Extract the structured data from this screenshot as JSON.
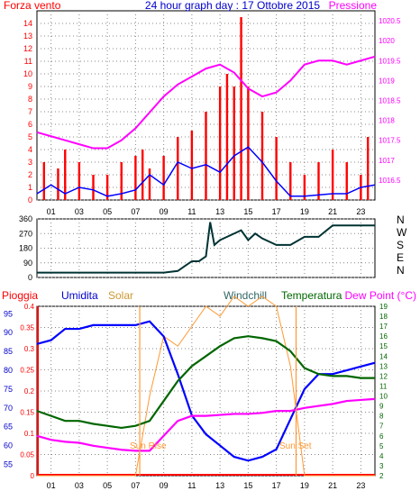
{
  "header": {
    "left_label": "Forza vento",
    "title": "24 hour graph day : 17 Ottobre 2015",
    "right_label": "Pressione"
  },
  "bottom_labels": {
    "pioggia": "Pioggia",
    "umidita": "Umidita",
    "solar": "Solar",
    "windchill": "Windchill",
    "temperatura": "Temperatura",
    "dewpoint": "Dew Point (°C)"
  },
  "annotations": {
    "sunrise": "Sun Rise",
    "sunset": "Sun Set"
  },
  "x_ticks": [
    "01",
    "03",
    "05",
    "07",
    "09",
    "11",
    "13",
    "15",
    "17",
    "19",
    "21",
    "23"
  ],
  "colors": {
    "wind": "#ff0000",
    "gust": "#0000ff",
    "pressure": "#ff00ff",
    "direction": "#003333",
    "rain": "#ff0000",
    "humidity": "#0000ff",
    "solar": "#ff9933",
    "temperature": "#006600",
    "dewpoint": "#ff00ff",
    "grid": "#888888"
  },
  "chart_data": [
    {
      "type": "bar",
      "name": "wind",
      "y_left_range": [
        0,
        15
      ],
      "y_left_ticks": [
        "0",
        "1",
        "2",
        "3",
        "4",
        "5",
        "6",
        "7",
        "8",
        "9",
        "10",
        "11",
        "12",
        "13",
        "14"
      ],
      "y_right_range": [
        1016,
        1020.75
      ],
      "y_right_ticks": [
        "1016.5",
        "1017",
        "1017.5",
        "1018",
        "1018.5",
        "1019",
        "1019.5",
        "1020",
        "1020.5"
      ],
      "x_range": [
        0,
        24
      ],
      "wind_hours": [
        0.5,
        1.5,
        2,
        3,
        4,
        5,
        6,
        7,
        7.5,
        8,
        9,
        10,
        11,
        12,
        13,
        13.5,
        14,
        14.5,
        15,
        16,
        17,
        18,
        19,
        20,
        21,
        22,
        23,
        23.5
      ],
      "wind_values": [
        3,
        2.5,
        4,
        3,
        2,
        2,
        3,
        3.5,
        4,
        2.5,
        3.5,
        5,
        5.5,
        7,
        9,
        10,
        9,
        14.5,
        9,
        7,
        5,
        3,
        2,
        3,
        4,
        3,
        2,
        5
      ],
      "pressure_hours": [
        0,
        1,
        2,
        3,
        4,
        5,
        6,
        7,
        8,
        9,
        10,
        11,
        12,
        13,
        14,
        15,
        16,
        17,
        18,
        19,
        20,
        21,
        22,
        23,
        24
      ],
      "pressure_values": [
        1017.7,
        1017.6,
        1017.5,
        1017.4,
        1017.3,
        1017.3,
        1017.5,
        1017.8,
        1018.2,
        1018.6,
        1018.9,
        1019.1,
        1019.3,
        1019.4,
        1019.2,
        1018.8,
        1018.6,
        1018.7,
        1019.0,
        1019.4,
        1019.5,
        1019.5,
        1019.4,
        1019.5,
        1019.6
      ],
      "gust_hours": [
        0,
        1,
        2,
        3,
        4,
        5,
        6,
        7,
        8,
        9,
        10,
        11,
        12,
        13,
        14,
        15,
        16,
        17,
        18,
        19,
        20,
        21,
        22,
        23,
        24
      ],
      "gust_values": [
        0.5,
        1.2,
        0.5,
        1.0,
        0.8,
        0.3,
        0.5,
        0.8,
        2.0,
        1.2,
        3.0,
        2.5,
        2.8,
        2.2,
        3.5,
        4.2,
        3.0,
        1.5,
        0.3,
        0.3,
        0.4,
        0.5,
        0.5,
        1.0,
        1.2
      ]
    },
    {
      "type": "line",
      "name": "wind direction",
      "y_range": [
        0,
        360
      ],
      "y_ticks": [
        "0",
        "90",
        "180",
        "270",
        "360"
      ],
      "y_letters": [
        "N",
        "W",
        "S",
        "E",
        "N"
      ],
      "x_range": [
        0,
        24
      ],
      "x": [
        0,
        1,
        2,
        3,
        4,
        5,
        6,
        7,
        8,
        9,
        10,
        10.5,
        11,
        11.5,
        12,
        12.3,
        12.6,
        13,
        13.5,
        14,
        14.5,
        15,
        15.5,
        16,
        17,
        18,
        19,
        20,
        21,
        22,
        23,
        24
      ],
      "y": [
        30,
        30,
        30,
        30,
        30,
        30,
        30,
        30,
        30,
        30,
        40,
        70,
        100,
        100,
        130,
        340,
        200,
        230,
        250,
        270,
        290,
        230,
        270,
        240,
        200,
        200,
        250,
        250,
        320,
        320,
        320,
        320
      ]
    },
    {
      "type": "line",
      "name": "temperature and humidity",
      "humidity_range": [
        52,
        97
      ],
      "humidity_ticks": [
        "55",
        "60",
        "65",
        "70",
        "75",
        "80",
        "85",
        "90",
        "95"
      ],
      "rain_range": [
        0,
        0.4
      ],
      "rain_ticks": [
        "0",
        "0.05",
        "0.1",
        "0.15",
        "0.2",
        "0.25",
        "0.3",
        "0.35",
        "0.4"
      ],
      "temp_range": [
        2,
        19
      ],
      "temp_ticks": [
        "2",
        "3",
        "4",
        "5",
        "6",
        "7",
        "8",
        "9",
        "10",
        "11",
        "12",
        "13",
        "14",
        "15",
        "16",
        "17",
        "18",
        "19"
      ],
      "x_range": [
        0,
        24
      ],
      "x": [
        0,
        1,
        2,
        3,
        4,
        5,
        6,
        7,
        8,
        9,
        10,
        11,
        12,
        13,
        14,
        15,
        16,
        17,
        18,
        19,
        20,
        21,
        22,
        23,
        24
      ],
      "humidity": [
        87,
        88,
        91,
        91,
        92,
        92,
        92,
        92,
        93,
        89,
        79,
        68,
        63,
        60,
        57,
        56,
        57,
        59,
        67,
        75,
        79,
        79,
        80,
        81,
        82
      ],
      "temperature": [
        8.5,
        8.0,
        7.5,
        7.5,
        7.2,
        7.0,
        6.8,
        7.0,
        7.5,
        9.5,
        11.5,
        13.0,
        14.0,
        15.0,
        15.8,
        16.0,
        15.8,
        15.5,
        14.5,
        12.8,
        12.2,
        12.0,
        12.0,
        11.8,
        11.8
      ],
      "dewpoint": [
        6.0,
        5.6,
        5.4,
        5.3,
        5.0,
        4.8,
        4.6,
        4.5,
        4.5,
        6.0,
        7.5,
        8.0,
        8.0,
        8.1,
        8.2,
        8.2,
        8.3,
        8.5,
        8.5,
        8.8,
        9.0,
        9.2,
        9.5,
        9.6,
        9.7
      ],
      "solar": [
        0,
        0,
        0,
        0,
        0,
        0,
        0,
        0,
        8,
        14,
        13,
        15,
        17,
        16,
        18,
        17,
        18,
        17,
        11,
        0,
        0,
        0,
        0,
        0,
        0
      ],
      "rain": [
        0,
        0,
        0,
        0,
        0,
        0,
        0,
        0,
        0,
        0,
        0,
        0,
        0,
        0,
        0,
        0,
        0,
        0,
        0,
        0,
        0,
        0,
        0,
        0,
        0
      ]
    }
  ]
}
